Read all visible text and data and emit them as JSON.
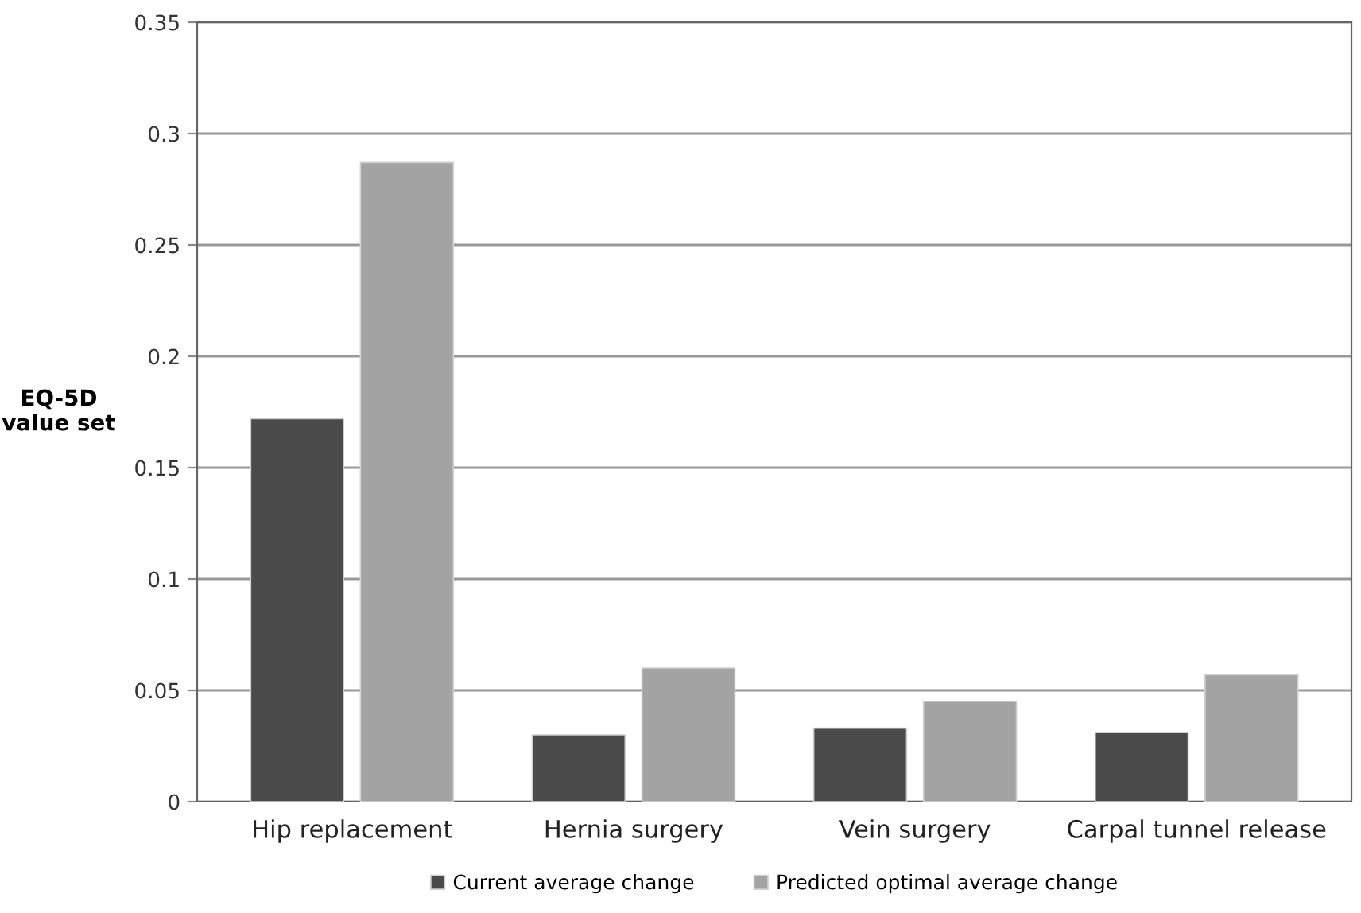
{
  "chart_data": {
    "type": "bar",
    "ylabel": "EQ-5D\nvalue set",
    "categories": [
      "Hip replacement",
      "Hernia surgery",
      "Vein surgery",
      "Carpal tunnel release"
    ],
    "series": [
      {
        "name": "Current average change",
        "color": "#4a4a4a",
        "values": [
          0.172,
          0.03,
          0.033,
          0.031
        ]
      },
      {
        "name": "Predicted optimal average change",
        "color": "#a3a3a3",
        "values": [
          0.287,
          0.06,
          0.045,
          0.057
        ]
      }
    ],
    "ylim": [
      0,
      0.35
    ],
    "yticks": [
      0,
      0.05,
      0.1,
      0.15,
      0.2,
      0.25,
      0.3,
      0.35
    ],
    "grid": "y",
    "legend": "bottom"
  }
}
